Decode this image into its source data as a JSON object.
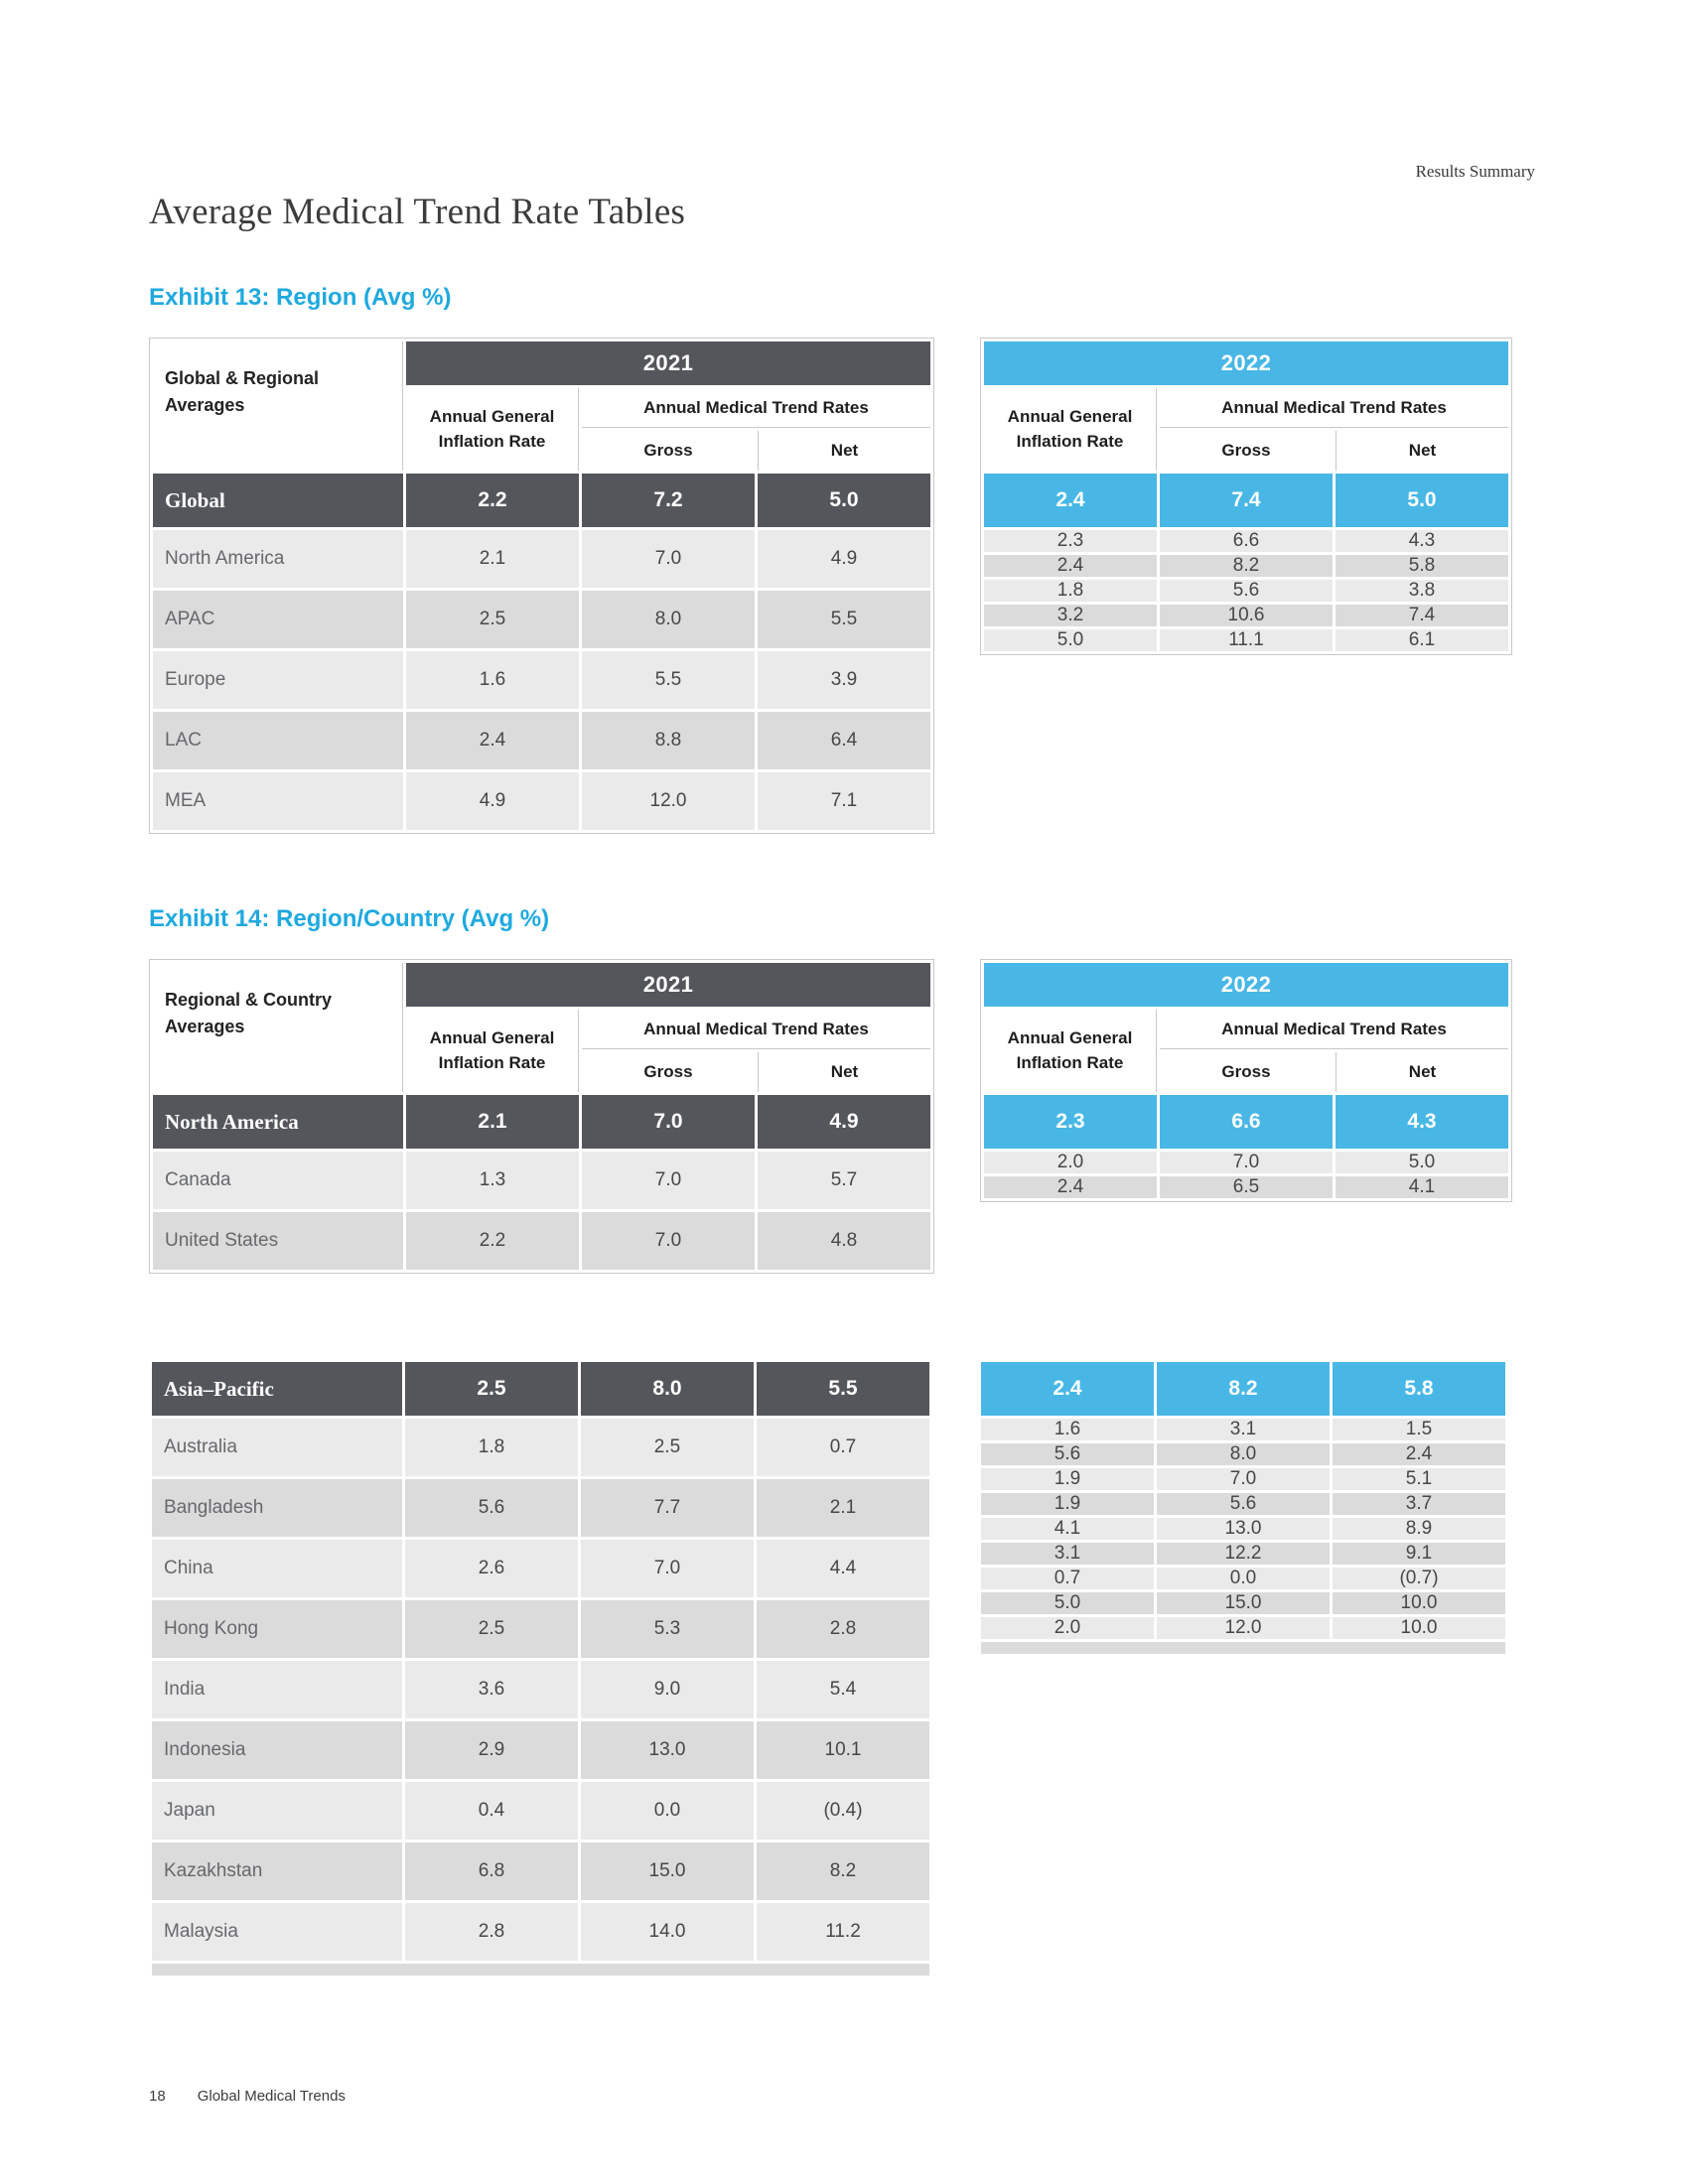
{
  "page": {
    "header_right": "Results Summary",
    "title": "Average Medical Trend Rate Tables",
    "footer": {
      "page_number": "18",
      "brand": "Global Medical Trends"
    }
  },
  "colors": {
    "dark": "#54565B",
    "blue": "#48B7E6",
    "cyan": "#1FA9DF",
    "row_a": "#EAEAEA",
    "row_b": "#DBDBDB",
    "label_text": "#66686C",
    "value_text": "#474747",
    "line": "#C8C8C8"
  },
  "exhibit13": {
    "title": "Exhibit 13: Region (Avg %)",
    "label_header": "Global & Regional Averages",
    "years": [
      "2021",
      "2022"
    ],
    "col_headers": {
      "inflation": "Annual General Inflation Rate",
      "trend": "Annual Medical Trend Rates",
      "gross": "Gross",
      "net": "Net"
    },
    "summary_row": {
      "label": "Global",
      "y2021": [
        "2.2",
        "7.2",
        "5.0"
      ],
      "y2022": [
        "2.4",
        "7.4",
        "5.0"
      ]
    },
    "rows": [
      {
        "label": "North America",
        "y2021": [
          "2.1",
          "7.0",
          "4.9"
        ],
        "y2022": [
          "2.3",
          "6.6",
          "4.3"
        ]
      },
      {
        "label": "APAC",
        "y2021": [
          "2.5",
          "8.0",
          "5.5"
        ],
        "y2022": [
          "2.4",
          "8.2",
          "5.8"
        ]
      },
      {
        "label": "Europe",
        "y2021": [
          "1.6",
          "5.5",
          "3.9"
        ],
        "y2022": [
          "1.8",
          "5.6",
          "3.8"
        ]
      },
      {
        "label": "LAC",
        "y2021": [
          "2.4",
          "8.8",
          "6.4"
        ],
        "y2022": [
          "3.2",
          "10.6",
          "7.4"
        ]
      },
      {
        "label": "MEA",
        "y2021": [
          "4.9",
          "12.0",
          "7.1"
        ],
        "y2022": [
          "5.0",
          "11.1",
          "6.1"
        ]
      }
    ]
  },
  "exhibit14": {
    "title": "Exhibit 14: Region/Country (Avg %)",
    "label_header": "Regional & Country Averages",
    "years": [
      "2021",
      "2022"
    ],
    "col_headers": {
      "inflation": "Annual General Inflation Rate",
      "trend": "Annual Medical Trend Rates",
      "gross": "Gross",
      "net": "Net"
    },
    "blocks": [
      {
        "summary_row": {
          "label": "North America",
          "y2021": [
            "2.1",
            "7.0",
            "4.9"
          ],
          "y2022": [
            "2.3",
            "6.6",
            "4.3"
          ]
        },
        "rows": [
          {
            "label": "Canada",
            "y2021": [
              "1.3",
              "7.0",
              "5.7"
            ],
            "y2022": [
              "2.0",
              "7.0",
              "5.0"
            ]
          },
          {
            "label": "United States",
            "y2021": [
              "2.2",
              "7.0",
              "4.8"
            ],
            "y2022": [
              "2.4",
              "6.5",
              "4.1"
            ]
          }
        ]
      },
      {
        "summary_row": {
          "label": "Asia–Pacific",
          "y2021": [
            "2.5",
            "8.0",
            "5.5"
          ],
          "y2022": [
            "2.4",
            "8.2",
            "5.8"
          ]
        },
        "rows": [
          {
            "label": "Australia",
            "y2021": [
              "1.8",
              "2.5",
              "0.7"
            ],
            "y2022": [
              "1.6",
              "3.1",
              "1.5"
            ]
          },
          {
            "label": "Bangladesh",
            "y2021": [
              "5.6",
              "7.7",
              "2.1"
            ],
            "y2022": [
              "5.6",
              "8.0",
              "2.4"
            ]
          },
          {
            "label": "China",
            "y2021": [
              "2.6",
              "7.0",
              "4.4"
            ],
            "y2022": [
              "1.9",
              "7.0",
              "5.1"
            ]
          },
          {
            "label": "Hong Kong",
            "y2021": [
              "2.5",
              "5.3",
              "2.8"
            ],
            "y2022": [
              "1.9",
              "5.6",
              "3.7"
            ]
          },
          {
            "label": "India",
            "y2021": [
              "3.6",
              "9.0",
              "5.4"
            ],
            "y2022": [
              "4.1",
              "13.0",
              "8.9"
            ]
          },
          {
            "label": "Indonesia",
            "y2021": [
              "2.9",
              "13.0",
              "10.1"
            ],
            "y2022": [
              "3.1",
              "12.2",
              "9.1"
            ]
          },
          {
            "label": "Japan",
            "y2021": [
              "0.4",
              "0.0",
              "(0.4)"
            ],
            "y2022": [
              "0.7",
              "0.0",
              "(0.7)"
            ]
          },
          {
            "label": "Kazakhstan",
            "y2021": [
              "6.8",
              "15.0",
              "8.2"
            ],
            "y2022": [
              "5.0",
              "15.0",
              "10.0"
            ]
          },
          {
            "label": "Malaysia",
            "y2021": [
              "2.8",
              "14.0",
              "11.2"
            ],
            "y2022": [
              "2.0",
              "12.0",
              "10.0"
            ]
          }
        ]
      }
    ]
  }
}
